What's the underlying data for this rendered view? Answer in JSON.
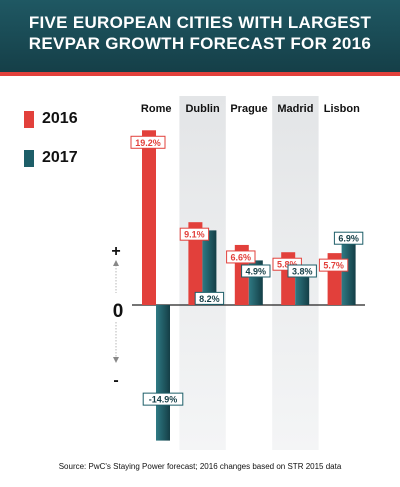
{
  "header": {
    "title_line1": "FIVE EUROPEAN CITIES WITH LARGEST",
    "title_line2": "REVPAR GROWTH FORECAST FOR 2016"
  },
  "legend": [
    {
      "label": "2016",
      "color": "#e2403b"
    },
    {
      "label": "2017",
      "color": "#1d5e68"
    }
  ],
  "axis": {
    "plus_label": "+",
    "zero_label": "0",
    "minus_label": "-"
  },
  "source": "Source: PwC's Staying Power forecast; 2016 changes based on STR 2015 data",
  "chart_data": {
    "type": "bar",
    "title": "FIVE EUROPEAN CITIES WITH LARGEST REVPAR GROWTH FORECAST FOR 2016",
    "categories": [
      "Rome",
      "Dublin",
      "Prague",
      "Madrid",
      "Lisbon"
    ],
    "series": [
      {
        "name": "2016",
        "color": "#e2403b",
        "values": [
          19.2,
          9.1,
          6.6,
          5.8,
          5.7
        ],
        "labels": [
          "19.2%",
          "9.1%",
          "6.6%",
          "5.8%",
          "5.7%"
        ]
      },
      {
        "name": "2017",
        "color": "#1d5e68",
        "values": [
          -14.9,
          8.2,
          4.9,
          3.8,
          6.9
        ],
        "labels": [
          "-14.9%",
          "8.2%",
          "4.9%",
          "3.8%",
          "6.9%"
        ]
      }
    ],
    "ylim": [
      -20,
      20
    ],
    "grid": false,
    "legend": "left"
  }
}
